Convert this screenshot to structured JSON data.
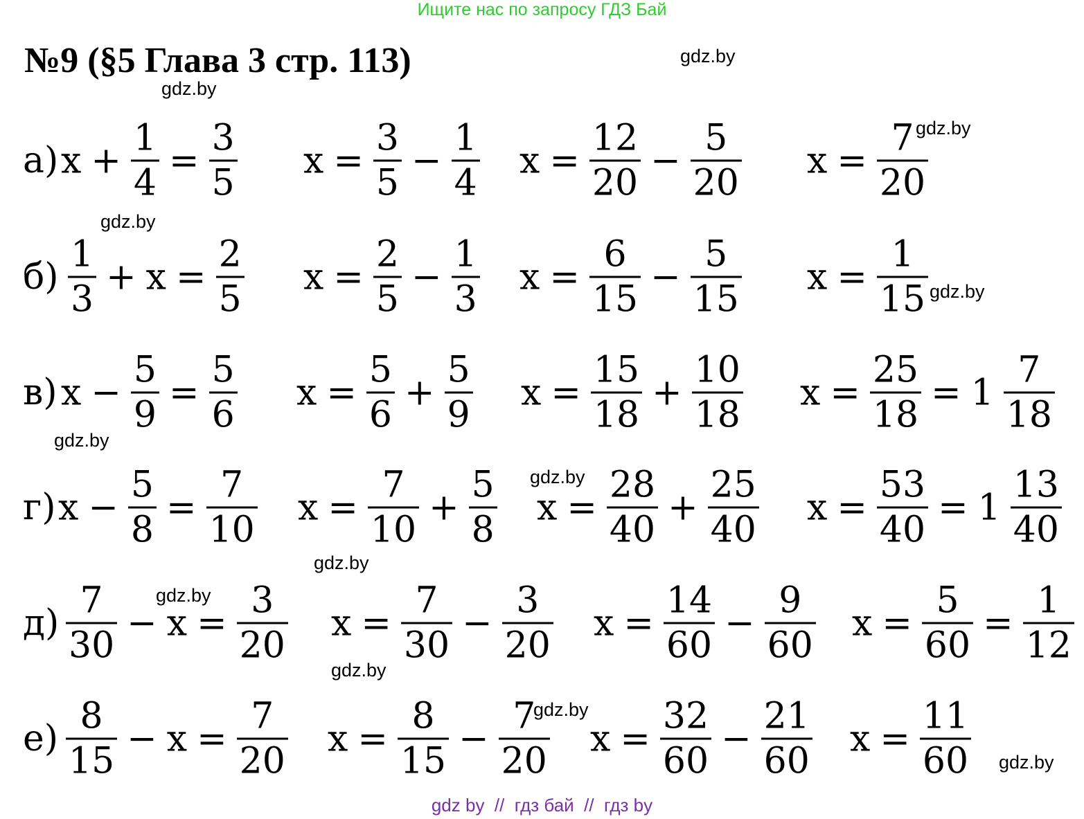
{
  "banner": "Ищите нас по запросу ГДЗ Бай",
  "title": "№9 (§5 Глава 3 стр. 113)",
  "watermarks": [
    "gdz.by",
    "gdz.by",
    "gdz.by",
    "gdz.by",
    "gdz.by",
    "gdz.by",
    "gdz.by",
    "gdz.by",
    "gdz.by",
    "gdz.by",
    "gdz.by",
    "gdz.by"
  ],
  "rows": [
    {
      "label": "а)",
      "steps": [
        [
          "x",
          "+",
          {
            "num": 1,
            "den": 4
          },
          "=",
          {
            "num": 3,
            "den": 5
          }
        ],
        [
          "x",
          "=",
          {
            "num": 3,
            "den": 5
          },
          "−",
          {
            "num": 1,
            "den": 4
          }
        ],
        [
          "x",
          "=",
          {
            "num": 12,
            "den": 20
          },
          "−",
          {
            "num": 5,
            "den": 20
          }
        ],
        [
          "x",
          "=",
          {
            "num": 7,
            "den": 20
          }
        ]
      ]
    },
    {
      "label": "б)",
      "steps": [
        [
          {
            "num": 1,
            "den": 3
          },
          "+",
          "x",
          "=",
          {
            "num": 2,
            "den": 5
          }
        ],
        [
          "x",
          "=",
          {
            "num": 2,
            "den": 5
          },
          "−",
          {
            "num": 1,
            "den": 3
          }
        ],
        [
          "x",
          "=",
          {
            "num": 6,
            "den": 15
          },
          "−",
          {
            "num": 5,
            "den": 15
          }
        ],
        [
          "x",
          "=",
          {
            "num": 1,
            "den": 15
          }
        ]
      ]
    },
    {
      "label": "в)",
      "steps": [
        [
          "x",
          "−",
          {
            "num": 5,
            "den": 9
          },
          "=",
          {
            "num": 5,
            "den": 6
          }
        ],
        [
          "x",
          "=",
          {
            "num": 5,
            "den": 6
          },
          "+",
          {
            "num": 5,
            "den": 9
          }
        ],
        [
          "x",
          "=",
          {
            "num": 15,
            "den": 18
          },
          "+",
          {
            "num": 10,
            "den": 18
          }
        ],
        [
          "x",
          "=",
          {
            "num": 25,
            "den": 18
          },
          "=",
          "1",
          {
            "num": 7,
            "den": 18
          }
        ]
      ]
    },
    {
      "label": "г)",
      "steps": [
        [
          "x",
          "−",
          {
            "num": 5,
            "den": 8
          },
          "=",
          {
            "num": 7,
            "den": 10
          }
        ],
        [
          "x",
          "=",
          {
            "num": 7,
            "den": 10
          },
          "+",
          {
            "num": 5,
            "den": 8
          }
        ],
        [
          "x",
          "=",
          {
            "num": 28,
            "den": 40
          },
          "+",
          {
            "num": 25,
            "den": 40
          }
        ],
        [
          "x",
          "=",
          {
            "num": 53,
            "den": 40
          },
          "=",
          "1",
          {
            "num": 13,
            "den": 40
          }
        ]
      ]
    },
    {
      "label": "д)",
      "steps": [
        [
          {
            "num": 7,
            "den": 30
          },
          "−",
          "x",
          "=",
          {
            "num": 3,
            "den": 20
          }
        ],
        [
          "x",
          "=",
          {
            "num": 7,
            "den": 30
          },
          "−",
          {
            "num": 3,
            "den": 20
          }
        ],
        [
          "x",
          "=",
          {
            "num": 14,
            "den": 60
          },
          "−",
          {
            "num": 9,
            "den": 60
          }
        ],
        [
          "x",
          "=",
          {
            "num": 5,
            "den": 60
          },
          "=",
          {
            "num": 1,
            "den": 12
          }
        ]
      ]
    },
    {
      "label": "е)",
      "steps": [
        [
          {
            "num": 8,
            "den": 15
          },
          "−",
          "x",
          "=",
          {
            "num": 7,
            "den": 20
          }
        ],
        [
          "x",
          "=",
          {
            "num": 8,
            "den": 15
          },
          "−",
          {
            "num": 7,
            "den": 20
          }
        ],
        [
          "x",
          "=",
          {
            "num": 32,
            "den": 60
          },
          "−",
          {
            "num": 21,
            "den": 60
          }
        ],
        [
          "x",
          "=",
          {
            "num": 11,
            "den": 60
          }
        ]
      ]
    }
  ],
  "footer": "gdz by  //  гдз бай  //  гдз by"
}
